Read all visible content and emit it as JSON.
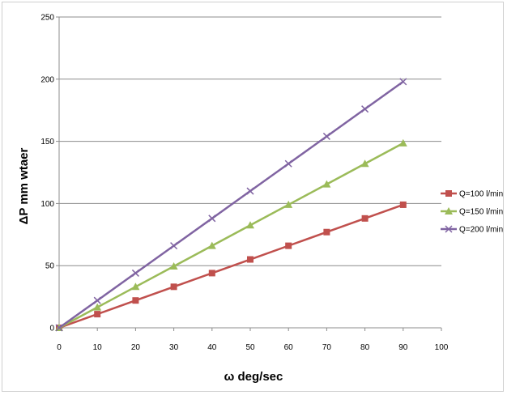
{
  "chart_data": {
    "type": "line",
    "title": "",
    "xlabel": "ω deg/sec",
    "ylabel": "ΔP mm wtaer",
    "xlim": [
      0,
      100
    ],
    "ylim": [
      0,
      250
    ],
    "x_ticks": [
      0,
      10,
      20,
      30,
      40,
      50,
      60,
      70,
      80,
      90,
      100
    ],
    "y_ticks": [
      0,
      50,
      100,
      150,
      200,
      250
    ],
    "grid": "horizontal major gridlines",
    "legend_position": "right",
    "x": [
      0,
      10,
      20,
      30,
      40,
      50,
      60,
      70,
      80,
      90
    ],
    "series": [
      {
        "name": "Q=100 l/min",
        "marker": "square",
        "color": "#C0504D",
        "values": [
          0,
          11,
          22,
          33,
          44,
          55,
          66,
          77,
          88,
          99
        ]
      },
      {
        "name": "Q=150 l/min",
        "marker": "triangle",
        "color": "#9BBB59",
        "values": [
          0,
          16.5,
          33,
          49.5,
          66,
          82.5,
          99,
          115.5,
          132,
          148.5
        ]
      },
      {
        "name": "Q=200 l/min",
        "marker": "x",
        "color": "#8064A2",
        "values": [
          0,
          22,
          44,
          66,
          88,
          110,
          132,
          154,
          176,
          198
        ]
      }
    ]
  }
}
